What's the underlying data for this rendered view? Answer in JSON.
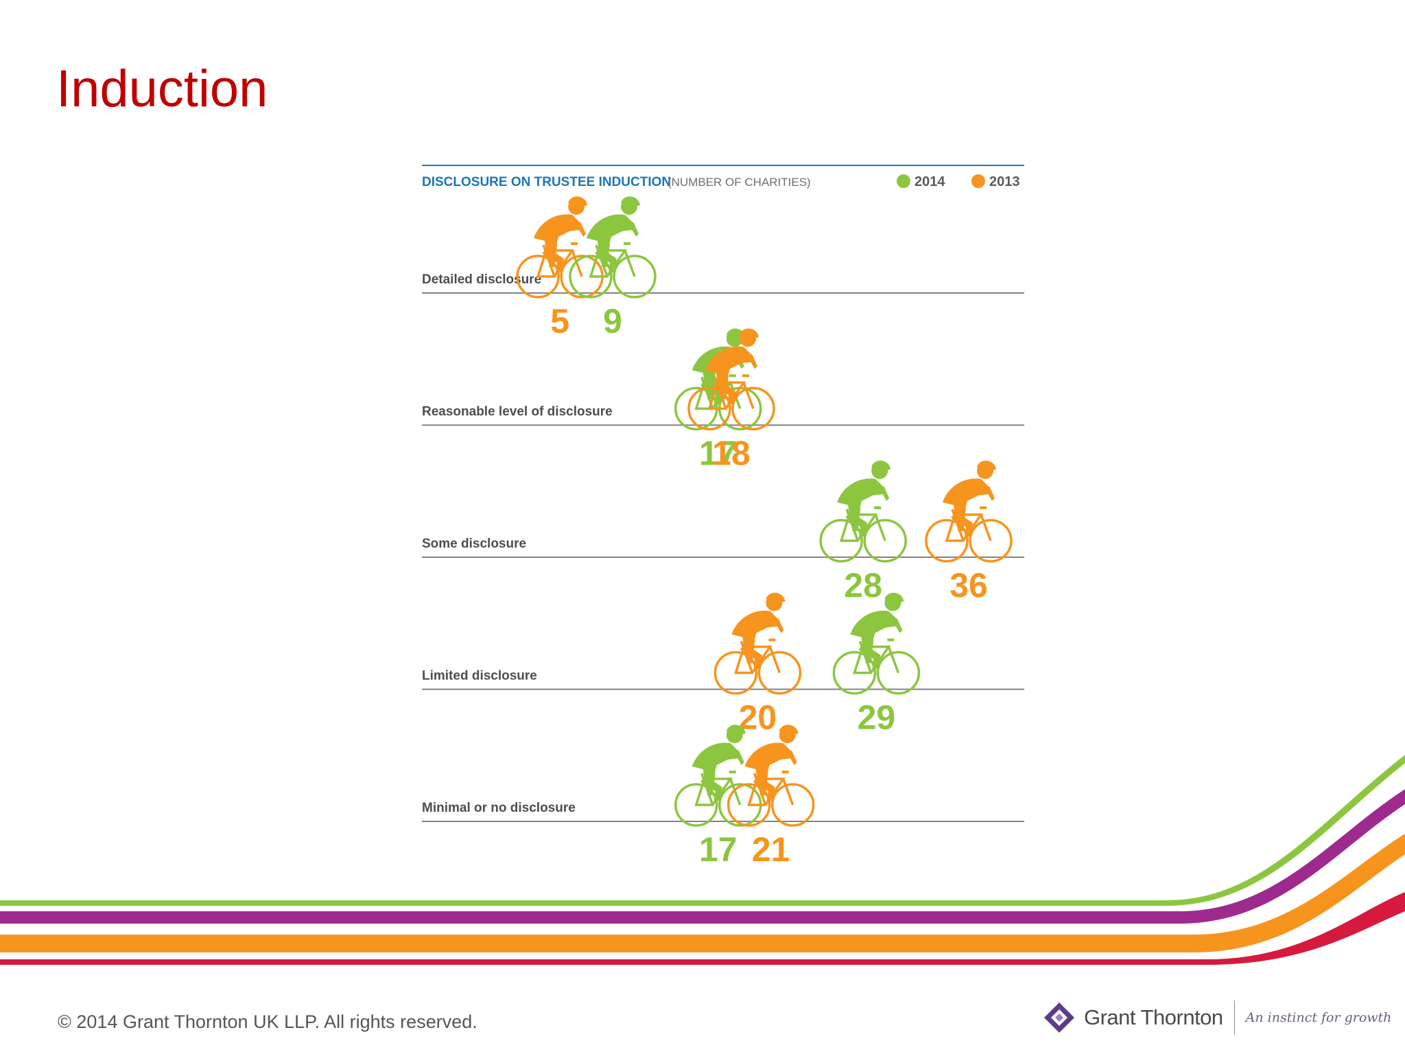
{
  "slide": {
    "title": "Induction",
    "footer": "© 2014 Grant Thornton UK LLP. All rights reserved."
  },
  "logo": {
    "name": "Grant Thornton",
    "tagline": "An instinct for growth"
  },
  "colors": {
    "y2014": "#8cc63f",
    "y2013": "#f7941d",
    "title": "#c00000",
    "chart_title": "#1b75bb",
    "stripe_green": "#8cc63f",
    "stripe_purple": "#9e2a8e",
    "stripe_orange": "#f7941d",
    "stripe_red": "#d7193e"
  },
  "chart_data": {
    "type": "scatter",
    "title": "DISCLOSURE ON TRUSTEE INDUCTION",
    "subtitle": "(NUMBER OF CHARITIES)",
    "legend": [
      {
        "name": "2014",
        "color": "#8cc63f"
      },
      {
        "name": "2013",
        "color": "#f7941d"
      }
    ],
    "legend_position": "top-right",
    "categories": [
      "Detailed disclosure",
      "Reasonable level of disclosure",
      "Some disclosure",
      "Limited disclosure",
      "Minimal or no disclosure"
    ],
    "series": [
      {
        "name": "2014",
        "values": [
          9,
          17,
          28,
          29,
          17
        ]
      },
      {
        "name": "2013",
        "values": [
          5,
          18,
          36,
          20,
          21
        ]
      }
    ],
    "xlim": [
      0,
      40
    ],
    "grid": false
  }
}
